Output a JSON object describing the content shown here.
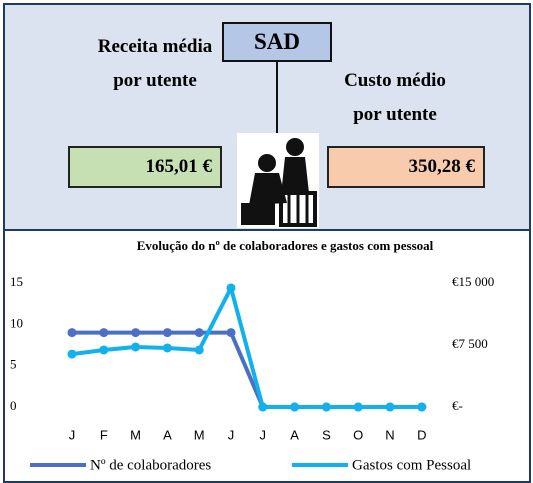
{
  "header": {
    "title": "SAD",
    "left_label": "Receita média por utente",
    "left_value": "165,01 €",
    "right_label": "Custo médio por utente",
    "right_value": "350,28 €"
  },
  "chart_data": {
    "type": "line",
    "title": "Evolução do nº de colaboradores e gastos com pessoal",
    "categories": [
      "J",
      "F",
      "M",
      "A",
      "M",
      "J",
      "J",
      "A",
      "S",
      "O",
      "N",
      "D"
    ],
    "series": [
      {
        "name": "Nº de colaboradores",
        "color": "#4a6fc4",
        "values": [
          9,
          9,
          9,
          9,
          9,
          9,
          0,
          0,
          0,
          0,
          0,
          0
        ]
      },
      {
        "name": "Gastos com Pessoal",
        "color": "#12b0ec",
        "axis": "y2",
        "values": [
          6400,
          6900,
          7260,
          7140,
          6900,
          14400,
          0,
          0,
          0,
          0,
          0,
          0
        ]
      }
    ],
    "ylim": [
      0,
      15
    ],
    "yticks": [
      0,
      5,
      10,
      15
    ],
    "y2lim": [
      0,
      15000
    ],
    "y2ticks": [
      {
        "value": 0,
        "label": "€-"
      },
      {
        "value": 7500,
        "label": "€7 500"
      },
      {
        "value": 15000,
        "label": "€15 000"
      }
    ],
    "legend": "bottom"
  }
}
